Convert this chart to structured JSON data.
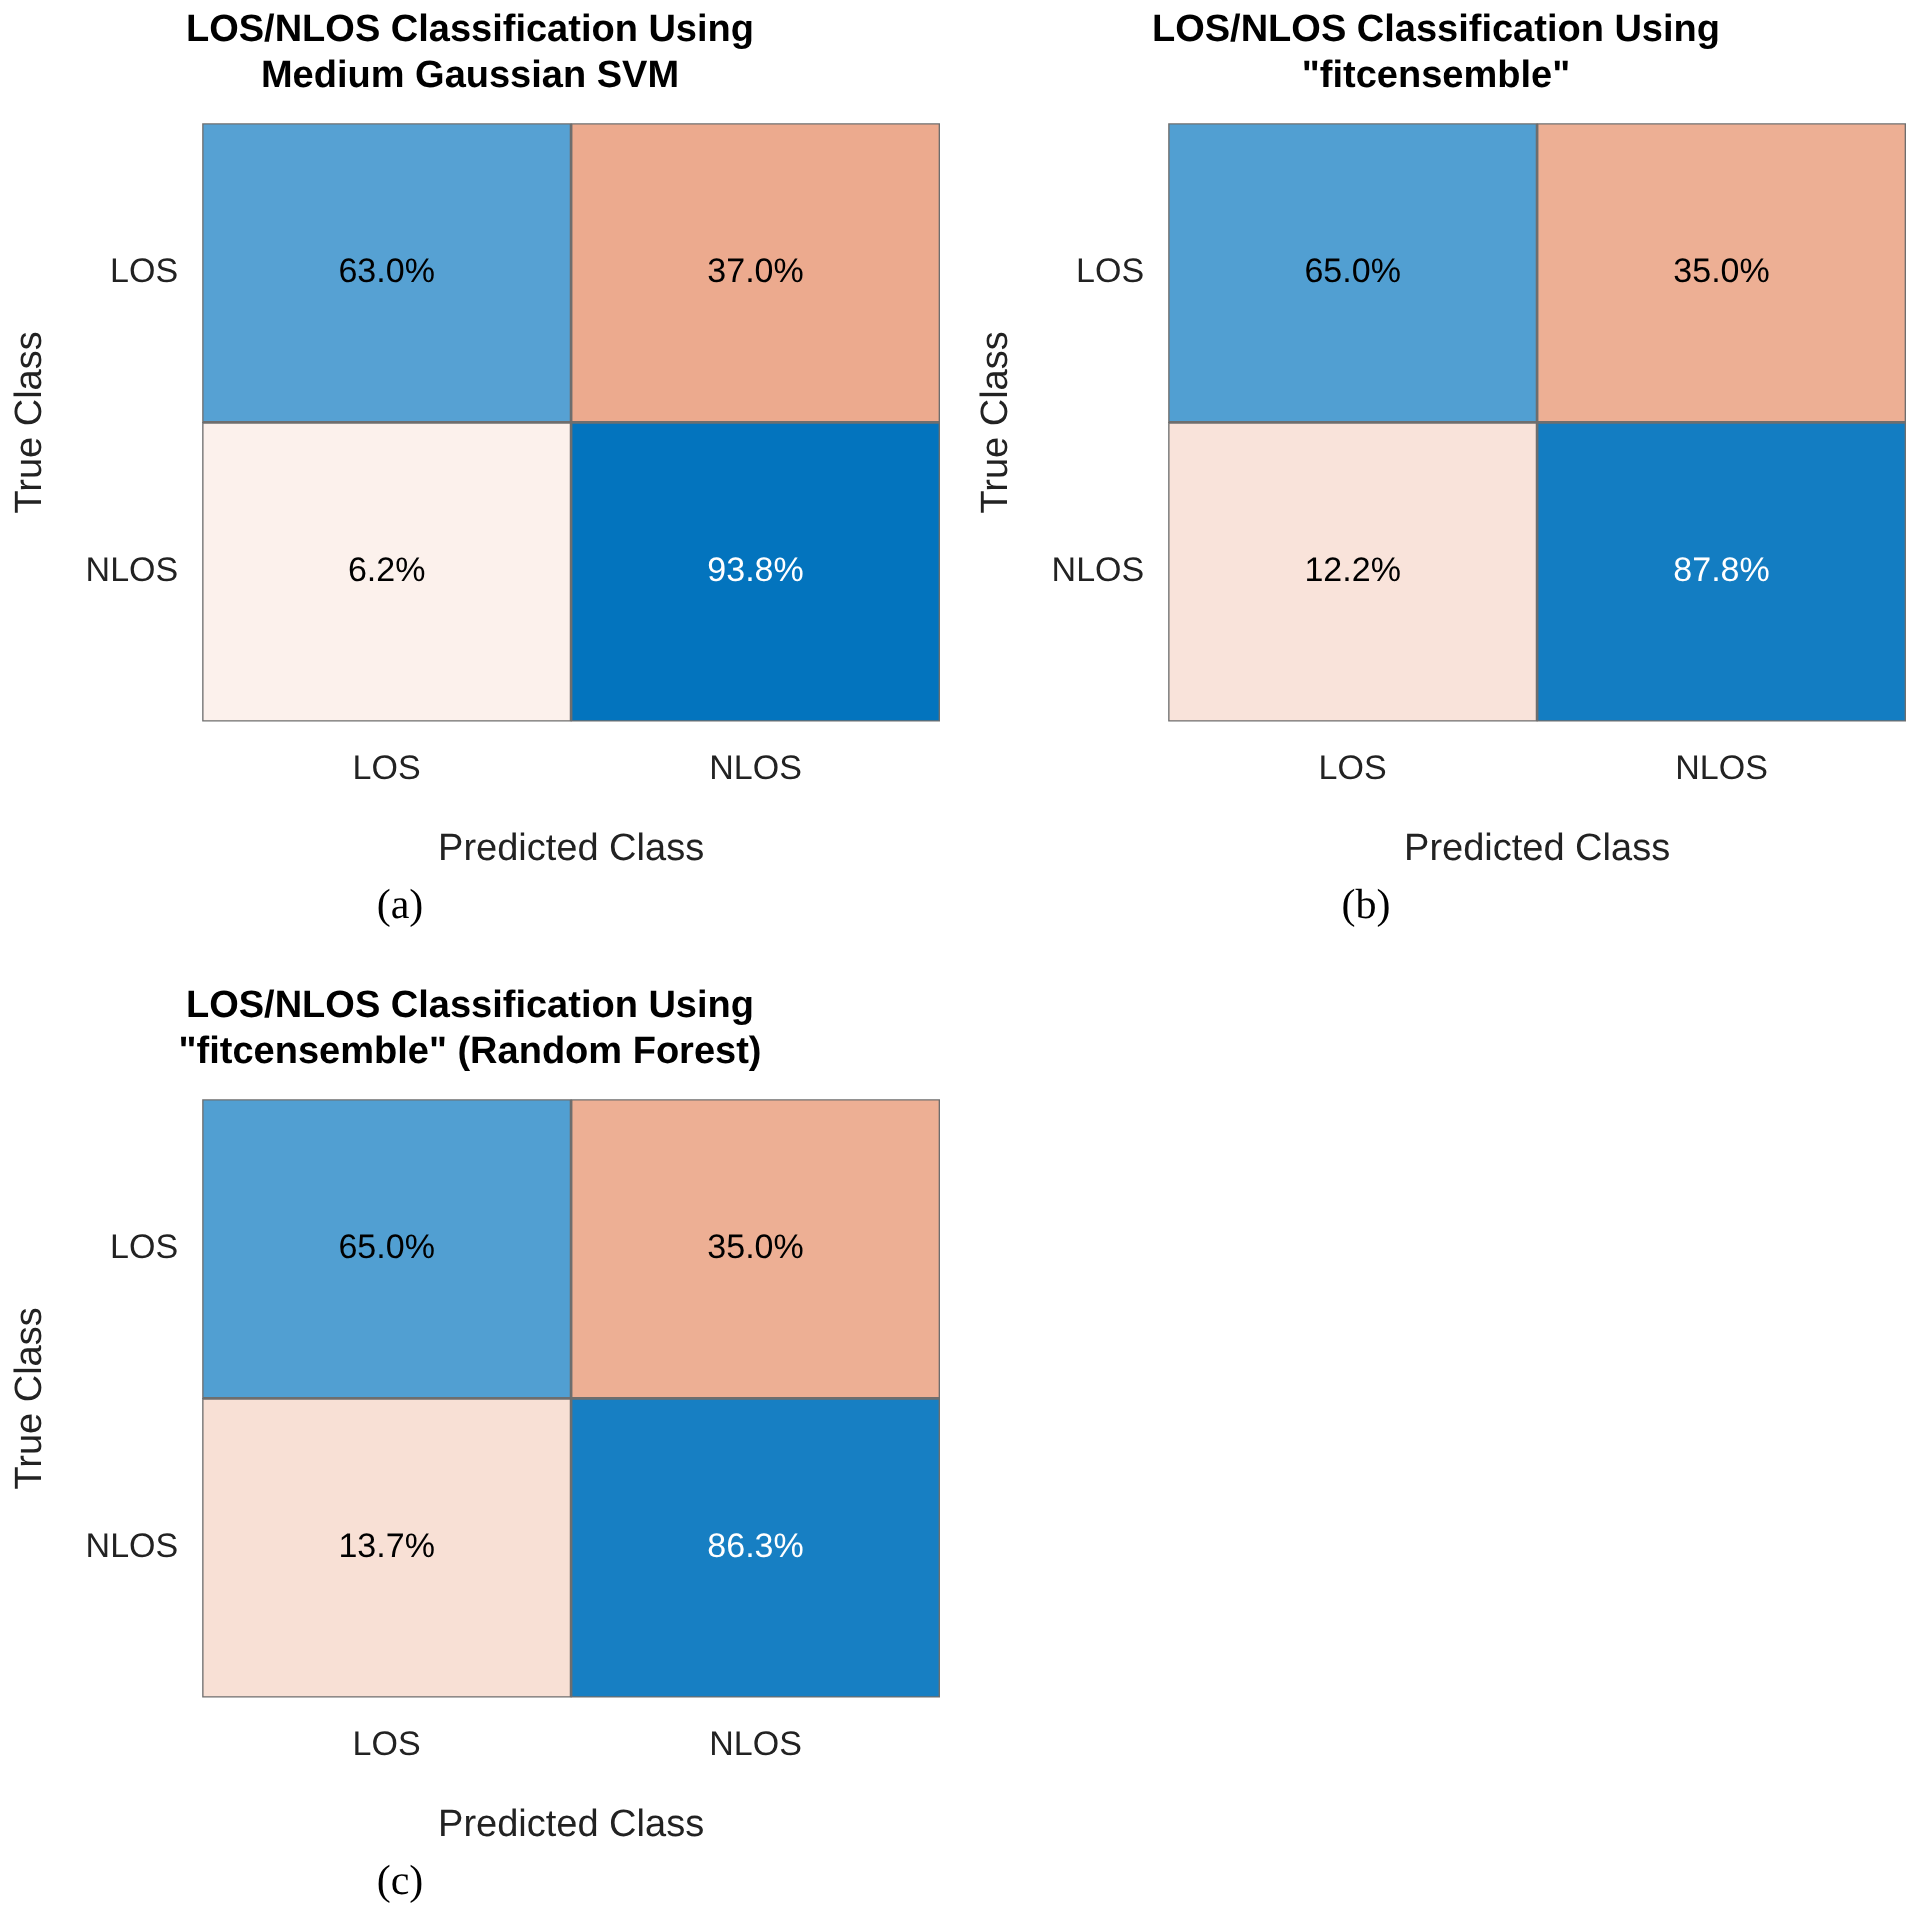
{
  "chart_data": [
    {
      "type": "heatmap",
      "title": "LOS/NLOS Classification Using\nMedium Gaussian SVM",
      "xlabel": "Predicted Class",
      "ylabel": "True Class",
      "categories": [
        "LOS",
        "NLOS"
      ],
      "y_categories": [
        "LOS",
        "NLOS"
      ],
      "cells": [
        [
          63.0,
          37.0
        ],
        [
          6.2,
          93.8
        ]
      ],
      "cell_labels": [
        [
          "63.0%",
          "37.0%"
        ],
        [
          "6.2%",
          "93.8%"
        ]
      ],
      "annotations": [
        "(a)"
      ]
    },
    {
      "type": "heatmap",
      "title": "LOS/NLOS Classification Using\n\"fitcensemble\"",
      "xlabel": "Predicted Class",
      "ylabel": "True Class",
      "categories": [
        "LOS",
        "NLOS"
      ],
      "y_categories": [
        "LOS",
        "NLOS"
      ],
      "cells": [
        [
          65.0,
          35.0
        ],
        [
          12.2,
          87.8
        ]
      ],
      "cell_labels": [
        [
          "65.0%",
          "35.0%"
        ],
        [
          "12.2%",
          "87.8%"
        ]
      ],
      "annotations": [
        "(b)"
      ]
    },
    {
      "type": "heatmap",
      "title": "LOS/NLOS Classification Using\n\"fitcensemble\" (Random Forest)",
      "xlabel": "Predicted Class",
      "ylabel": "True Class",
      "categories": [
        "LOS",
        "NLOS"
      ],
      "y_categories": [
        "LOS",
        "NLOS"
      ],
      "cells": [
        [
          65.0,
          35.0
        ],
        [
          13.7,
          86.3
        ]
      ],
      "cell_labels": [
        [
          "65.0%",
          "35.0%"
        ],
        [
          "13.7%",
          "86.3%"
        ]
      ],
      "annotations": [
        "(c)"
      ]
    }
  ]
}
